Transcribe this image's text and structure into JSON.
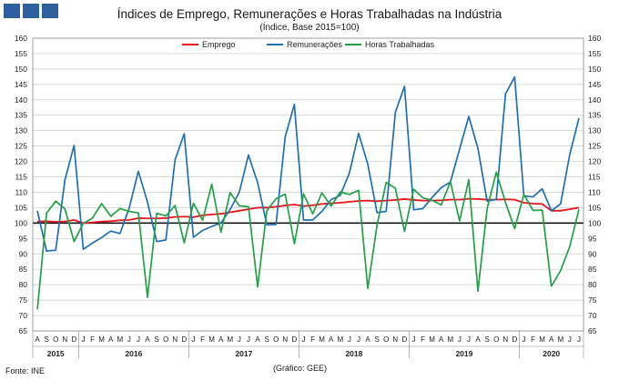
{
  "header": {
    "title": "Índices de Emprego, Remunerações e Horas Trabalhadas na Indústria",
    "subtitle": "(Índice, Base 2015=100)"
  },
  "footer": {
    "source": "Fonte: INE",
    "credit": "(Gráfico: GEE)"
  },
  "colors": {
    "logo": "#2e5f9f",
    "grid": "#c9c9c9",
    "baseline": "#000000"
  },
  "chart_data": {
    "type": "line",
    "title": "Índices de Emprego, Remunerações e Horas Trabalhadas na Indústria",
    "subtitle": "(Índice, Base 2015=100)",
    "ylim": [
      65,
      160
    ],
    "yticks": [
      65,
      70,
      75,
      80,
      85,
      90,
      95,
      100,
      105,
      110,
      115,
      120,
      125,
      130,
      135,
      140,
      145,
      150,
      155,
      160
    ],
    "y_axis_both_sides": true,
    "grid": true,
    "reference_line": 100,
    "legend_position": "top-center",
    "x": [
      "A",
      "S",
      "O",
      "N",
      "D",
      "J",
      "F",
      "M",
      "A",
      "M",
      "J",
      "J",
      "A",
      "S",
      "O",
      "N",
      "D",
      "J",
      "F",
      "M",
      "A",
      "M",
      "J",
      "J",
      "A",
      "S",
      "O",
      "N",
      "D",
      "J",
      "F",
      "M",
      "A",
      "M",
      "J",
      "J",
      "A",
      "S",
      "O",
      "N",
      "D",
      "J",
      "F",
      "M",
      "A",
      "M",
      "J",
      "J",
      "A",
      "S",
      "O",
      "N",
      "D",
      "J",
      "F",
      "M",
      "A",
      "M",
      "J",
      "J"
    ],
    "years": [
      {
        "label": "2015",
        "start": 0,
        "end": 4
      },
      {
        "label": "2016",
        "start": 5,
        "end": 16
      },
      {
        "label": "2017",
        "start": 17,
        "end": 28
      },
      {
        "label": "2018",
        "start": 29,
        "end": 40
      },
      {
        "label": "2019",
        "start": 41,
        "end": 52
      },
      {
        "label": "2020",
        "start": 53,
        "end": 59
      }
    ],
    "series": [
      {
        "name": "Emprego",
        "color": "#e8141b",
        "values": [
          100.5,
          100.6,
          100.4,
          100.5,
          101.0,
          100.0,
          100.2,
          100.5,
          100.6,
          100.9,
          101.0,
          101.6,
          101.5,
          101.5,
          101.6,
          102.0,
          102.1,
          101.9,
          102.5,
          102.8,
          103.0,
          103.5,
          104.0,
          104.5,
          105.0,
          105.0,
          105.3,
          105.7,
          106.0,
          105.5,
          105.8,
          106.2,
          106.4,
          106.6,
          106.9,
          107.2,
          107.3,
          107.1,
          107.3,
          107.5,
          107.8,
          107.5,
          107.3,
          107.3,
          107.4,
          107.6,
          107.6,
          107.9,
          107.8,
          107.6,
          107.6,
          107.7,
          107.6,
          106.6,
          106.3,
          106.2,
          104.0,
          104.0,
          104.5,
          105.0
        ]
      },
      {
        "name": "Remunerações",
        "color": "#1f6fb2",
        "values": [
          104.0,
          90.9,
          91.2,
          113.9,
          125.2,
          91.5,
          93.5,
          95.3,
          97.4,
          96.6,
          104.8,
          116.8,
          106.8,
          94.0,
          94.5,
          120.5,
          129.0,
          95.4,
          97.6,
          98.9,
          100.0,
          104.4,
          110.0,
          122.1,
          113.1,
          99.4,
          99.5,
          128.0,
          138.5,
          101.0,
          101.0,
          103.8,
          107.6,
          109.0,
          116.3,
          129.1,
          119.1,
          103.4,
          103.8,
          135.9,
          144.4,
          104.3,
          104.7,
          108.3,
          111.5,
          113.3,
          124.0,
          134.6,
          124.2,
          107.1,
          107.7,
          141.9,
          147.4,
          108.8,
          108.5,
          111.1,
          104.0,
          106.2,
          122.2,
          134.0
        ]
      },
      {
        "name": "Horas Trabalhadas",
        "color": "#21a045",
        "values": [
          72.0,
          103.2,
          107.1,
          104.6,
          94.0,
          99.9,
          101.6,
          106.3,
          102.2,
          104.7,
          103.8,
          103.3,
          75.9,
          103.2,
          102.3,
          105.7,
          93.6,
          106.4,
          100.9,
          112.6,
          97.0,
          109.9,
          105.6,
          105.3,
          79.3,
          104.0,
          107.9,
          109.4,
          93.3,
          109.5,
          103.0,
          109.8,
          105.5,
          110.1,
          109.3,
          110.6,
          78.8,
          99.2,
          113.2,
          111.3,
          97.3,
          111.0,
          108.2,
          107.4,
          105.9,
          113.4,
          100.7,
          114.1,
          77.9,
          104.7,
          116.5,
          106.7,
          98.2,
          109.3,
          104.1,
          104.2,
          79.5,
          84.5,
          92.4,
          104.4
        ]
      }
    ]
  }
}
